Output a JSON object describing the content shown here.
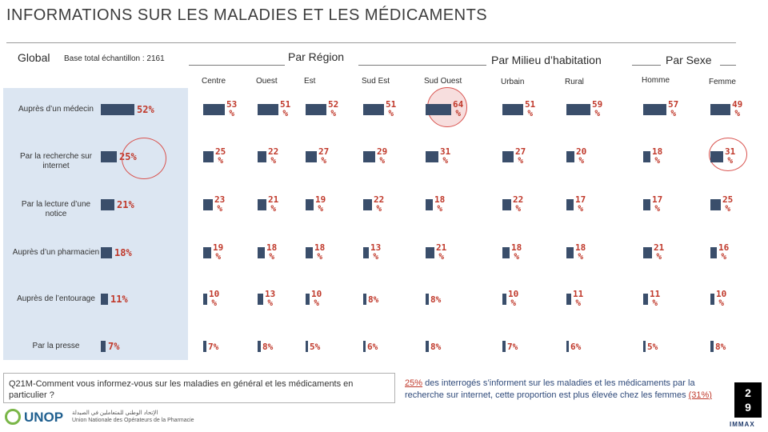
{
  "page_title": "INFORMATIONS SUR LES MALADIES ET LES MÉDICAMENTS",
  "group_headers": {
    "global": "Global",
    "base": "Base total échantillon : 2161",
    "region": "Par Région",
    "milieu": "Par Milieu d’habitation",
    "sexe": "Par Sexe"
  },
  "question": "Q21M-Comment vous informez-vous sur les maladies en général et les médicaments en particulier ?",
  "footnote": {
    "value1": "25%",
    "text1": " des interrogés s’informent sur les maladies et les médicaments par la recherche sur internet, cette proportion est plus élevée chez les femmes ",
    "value2": "(31%)"
  },
  "page_number": "2\n9",
  "logos": {
    "unop": "UNOP",
    "unop_sub_ar": "الإتحاد الوطني للمتعاملين في الصيدلة",
    "unop_sub_fr": "Union Nationale des Opérateurs de la Pharmacie",
    "immax": "IMMAX"
  },
  "colors": {
    "bar": "#3a4e6b",
    "value": "#c0392b",
    "panel": "#dce6f2",
    "highlight": "#d9534f"
  },
  "chart_data": {
    "type": "bar",
    "title": "INFORMATIONS SUR LES MALADIES ET LES MÉDICAMENTS",
    "unit": "%",
    "ylim": [
      0,
      100
    ],
    "categories": [
      "Auprès d’un médecin",
      "Par la recherche sur internet",
      "Par la lecture d’une notice",
      "Auprès d’un pharmacien",
      "Auprès de l’entourage",
      "Par la presse"
    ],
    "global": [
      52,
      25,
      21,
      18,
      11,
      7
    ],
    "series": [
      {
        "name": "Centre",
        "group": "Par Région",
        "values": [
          53,
          25,
          23,
          19,
          10,
          7
        ]
      },
      {
        "name": "Ouest",
        "group": "Par Région",
        "values": [
          51,
          22,
          21,
          18,
          13,
          8
        ]
      },
      {
        "name": "Est",
        "group": "Par Région",
        "values": [
          52,
          27,
          19,
          18,
          10,
          5
        ]
      },
      {
        "name": "Sud Est",
        "group": "Par Région",
        "values": [
          51,
          29,
          22,
          13,
          8,
          6
        ]
      },
      {
        "name": "Sud Ouest",
        "group": "Par Région",
        "values": [
          64,
          31,
          18,
          21,
          8,
          8
        ]
      },
      {
        "name": "Urbain",
        "group": "Par Milieu d’habitation",
        "values": [
          51,
          27,
          22,
          18,
          10,
          7
        ]
      },
      {
        "name": "Rural",
        "group": "Par Milieu d’habitation",
        "values": [
          59,
          20,
          17,
          18,
          11,
          6
        ]
      },
      {
        "name": "Homme",
        "group": "Par Sexe",
        "values": [
          57,
          18,
          17,
          21,
          11,
          5
        ]
      },
      {
        "name": "Femme",
        "group": "Par Sexe",
        "values": [
          49,
          31,
          25,
          16,
          10,
          8
        ]
      }
    ],
    "highlights": [
      "Global: Par la recherche sur internet",
      "Sud Ouest: Auprès d’un médecin",
      "Femme: Par la recherche sur internet"
    ]
  }
}
